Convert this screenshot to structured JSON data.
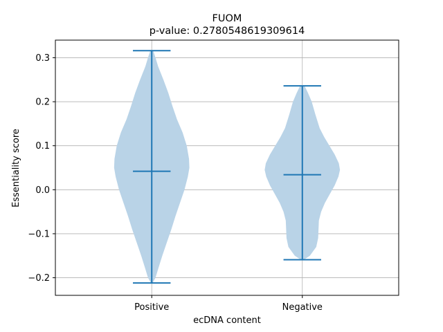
{
  "chart_data": {
    "type": "violin",
    "title": "FUOM",
    "subtitle": "p-value: 0.2780548619309614",
    "xlabel": "ecDNA content",
    "ylabel": "Essentiality score",
    "categories": [
      "Positive",
      "Negative"
    ],
    "ylim": [
      -0.24,
      0.34
    ],
    "yticks": [
      -0.2,
      -0.1,
      0.0,
      0.1,
      0.2,
      0.3
    ],
    "ytick_labels": [
      "−0.2",
      "−0.1",
      "0.0",
      "0.1",
      "0.2",
      "0.3"
    ],
    "grid": true,
    "colors": {
      "body": "#b9d3e7",
      "lines": "#1f77b4",
      "grid": "#b0b0b0"
    },
    "violins": [
      {
        "category": "Positive",
        "min": -0.212,
        "median": 0.042,
        "max": 0.316,
        "profile": [
          [
            -0.212,
            0.02
          ],
          [
            -0.2,
            0.1
          ],
          [
            -0.18,
            0.17
          ],
          [
            -0.15,
            0.28
          ],
          [
            -0.12,
            0.4
          ],
          [
            -0.09,
            0.52
          ],
          [
            -0.06,
            0.63
          ],
          [
            -0.03,
            0.75
          ],
          [
            0.0,
            0.87
          ],
          [
            0.03,
            0.96
          ],
          [
            0.05,
            1.0
          ],
          [
            0.07,
            0.99
          ],
          [
            0.1,
            0.93
          ],
          [
            0.13,
            0.82
          ],
          [
            0.16,
            0.67
          ],
          [
            0.19,
            0.55
          ],
          [
            0.22,
            0.44
          ],
          [
            0.25,
            0.31
          ],
          [
            0.28,
            0.17
          ],
          [
            0.3,
            0.1
          ],
          [
            0.316,
            0.04
          ]
        ]
      },
      {
        "category": "Negative",
        "min": -0.159,
        "median": 0.034,
        "max": 0.236,
        "profile": [
          [
            -0.159,
            0.04
          ],
          [
            -0.15,
            0.2
          ],
          [
            -0.13,
            0.37
          ],
          [
            -0.11,
            0.42
          ],
          [
            -0.09,
            0.43
          ],
          [
            -0.07,
            0.44
          ],
          [
            -0.05,
            0.5
          ],
          [
            -0.03,
            0.6
          ],
          [
            -0.01,
            0.73
          ],
          [
            0.01,
            0.86
          ],
          [
            0.03,
            0.96
          ],
          [
            0.045,
            1.0
          ],
          [
            0.06,
            0.97
          ],
          [
            0.08,
            0.86
          ],
          [
            0.1,
            0.72
          ],
          [
            0.12,
            0.58
          ],
          [
            0.14,
            0.46
          ],
          [
            0.17,
            0.35
          ],
          [
            0.2,
            0.25
          ],
          [
            0.22,
            0.15
          ],
          [
            0.236,
            0.06
          ]
        ]
      }
    ]
  }
}
